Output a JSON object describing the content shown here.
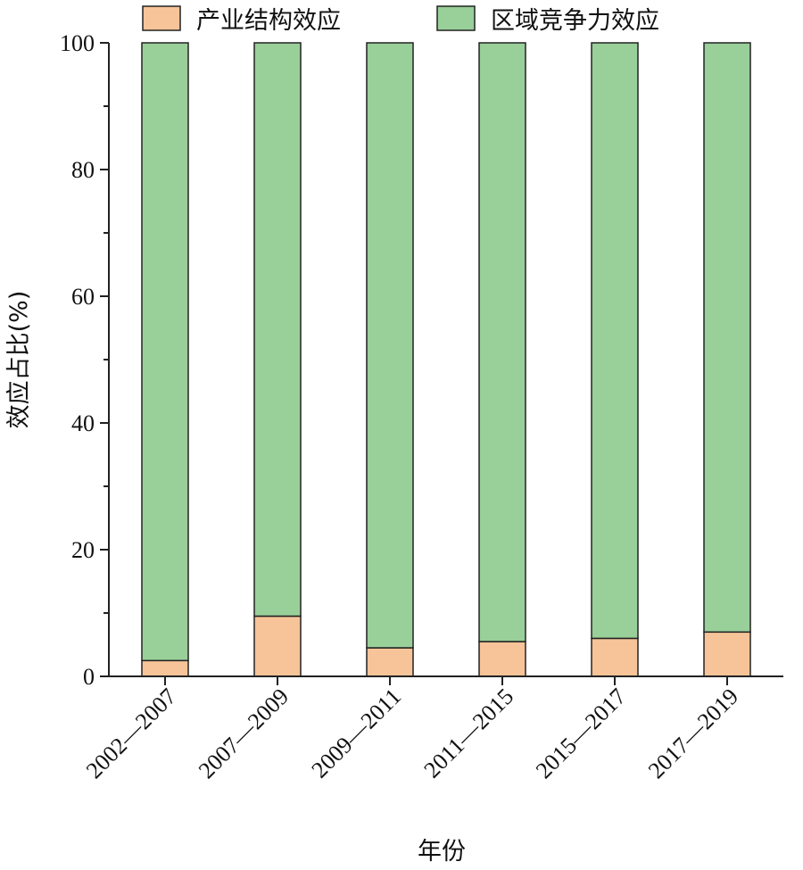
{
  "chart_data": {
    "type": "bar",
    "stacked": true,
    "categories": [
      "2002—2007",
      "2007—2009",
      "2009—2011",
      "2011—2015",
      "2015—2017",
      "2017—2019"
    ],
    "series": [
      {
        "name": "产业结构效应",
        "values": [
          2.5,
          9.5,
          4.5,
          5.5,
          6.0,
          7.0
        ],
        "color": "#f6c498"
      },
      {
        "name": "区域竞争力效应",
        "values": [
          97.5,
          90.5,
          95.5,
          94.5,
          94.0,
          93.0
        ],
        "color": "#99cf99"
      }
    ],
    "xlabel": "年份",
    "ylabel": "效应占比(%)",
    "ylim": [
      0,
      100
    ],
    "yticks": [
      0,
      20,
      40,
      60,
      80,
      100
    ],
    "grid": false,
    "legend": "top"
  }
}
